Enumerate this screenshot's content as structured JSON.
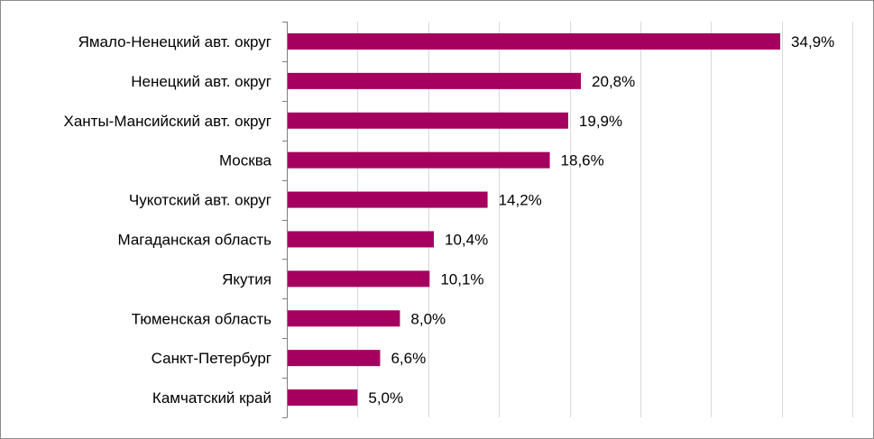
{
  "chart_data": {
    "type": "bar",
    "orientation": "horizontal",
    "categories": [
      "Ямало-Ненецкий авт. округ",
      "Ненецкий авт. округ",
      "Ханты-Мансийский авт. округ",
      "Москва",
      "Чукотский авт. округ",
      "Магаданская область",
      "Якутия",
      "Тюменская область",
      "Санкт-Петербург",
      "Камчатский край"
    ],
    "values": [
      34.9,
      20.8,
      19.9,
      18.6,
      14.2,
      10.4,
      10.1,
      8.0,
      6.6,
      5.0
    ],
    "value_labels": [
      "34,9%",
      "20,8%",
      "19,9%",
      "18,6%",
      "14,2%",
      "10,4%",
      "10,1%",
      "8,0%",
      "6,6%",
      "5,0%"
    ],
    "xlim": [
      0,
      40
    ],
    "grid": true,
    "bar_color": "#A50060",
    "title": "",
    "xlabel": "",
    "ylabel": ""
  }
}
